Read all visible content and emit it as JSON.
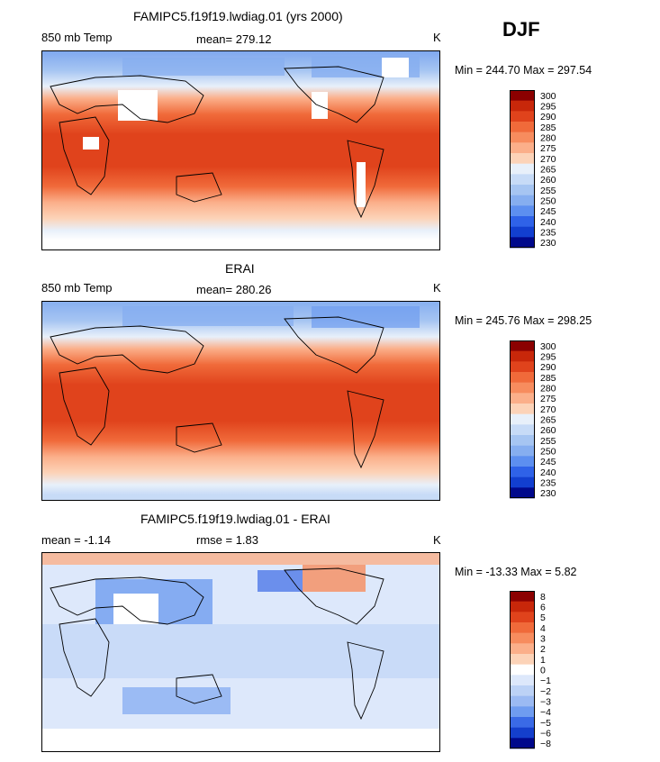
{
  "season": "DJF",
  "chart_data": [
    {
      "type": "heatmap",
      "title": "FAMIPC5.f19f19.lwdiag.01 (yrs 2000)",
      "variable": "850 mb Temp",
      "mean_label": "mean= 279.12",
      "units": "K",
      "minmax_label": "Min = 244.70 Max = 297.54",
      "min": 244.7,
      "max": 297.54,
      "colorbar_levels": [
        "300",
        "295",
        "290",
        "285",
        "280",
        "275",
        "270",
        "265",
        "260",
        "255",
        "250",
        "245",
        "240",
        "235",
        "230"
      ],
      "palette": [
        "#8b0000",
        "#c8270a",
        "#e0431c",
        "#f06a3a",
        "#f78c5e",
        "#fbaf8a",
        "#fcd3b8",
        "#e8f0fa",
        "#c7dbf7",
        "#a6c5f2",
        "#86aef0",
        "#5d8ff0",
        "#2f62e8",
        "#123fd0",
        "#00088c"
      ]
    },
    {
      "type": "heatmap",
      "title": "ERAI",
      "variable": "850 mb Temp",
      "mean_label": "mean= 280.26",
      "units": "K",
      "minmax_label": "Min = 245.76 Max = 298.25",
      "min": 245.76,
      "max": 298.25,
      "colorbar_levels": [
        "300",
        "295",
        "290",
        "285",
        "280",
        "275",
        "270",
        "265",
        "260",
        "255",
        "250",
        "245",
        "240",
        "235",
        "230"
      ],
      "palette": [
        "#8b0000",
        "#c8270a",
        "#e0431c",
        "#f06a3a",
        "#f78c5e",
        "#fbaf8a",
        "#fcd3b8",
        "#e8f0fa",
        "#c7dbf7",
        "#a6c5f2",
        "#86aef0",
        "#5d8ff0",
        "#2f62e8",
        "#123fd0",
        "#00088c"
      ]
    },
    {
      "type": "heatmap",
      "title": "FAMIPC5.f19f19.lwdiag.01 - ERAI",
      "variable": "mean =   -1.14",
      "mean_label": "rmse =    1.83",
      "units": "K",
      "minmax_label": "Min = -13.33 Max =    5.82",
      "min": -13.33,
      "max": 5.82,
      "colorbar_levels": [
        "8",
        "6",
        "5",
        "4",
        "3",
        "2",
        "1",
        "0",
        "−1",
        "−2",
        "−3",
        "−4",
        "−5",
        "−6",
        "−8"
      ],
      "palette": [
        "#8b0000",
        "#c8270a",
        "#e0431c",
        "#f06a3a",
        "#f78c5e",
        "#fbaf8a",
        "#fcd3b8",
        "#ffffff",
        "#dde8fb",
        "#bcd2f6",
        "#9bbaf3",
        "#6f9cf0",
        "#3a6ae6",
        "#143fcc",
        "#00088c"
      ]
    }
  ]
}
